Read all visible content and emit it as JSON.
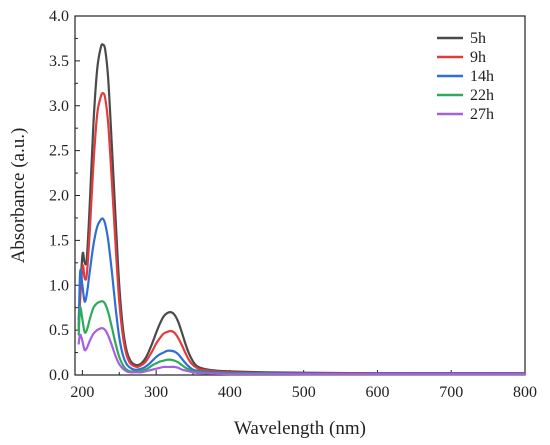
{
  "chart_data": {
    "type": "line",
    "title": "",
    "xlabel": "Wavelength (nm)",
    "ylabel": "Absorbance (a.u.)",
    "xlim": [
      190,
      800
    ],
    "ylim": [
      0,
      4.0
    ],
    "xticks": [
      200,
      300,
      400,
      500,
      600,
      700,
      800
    ],
    "xtick_labels": [
      "200",
      "300",
      "400",
      "500",
      "600",
      "700",
      "800"
    ],
    "yticks": [
      0,
      0.5,
      1.0,
      1.5,
      2.0,
      2.5,
      3.0,
      3.5,
      4.0
    ],
    "ytick_labels": [
      "0.0",
      "0.5",
      "1.0",
      "1.5",
      "2.0",
      "2.5",
      "3.0",
      "3.5",
      "4.0"
    ],
    "grid": false,
    "legend_position": "top-right",
    "series": [
      {
        "name": "5h",
        "color": "#4a4a4a",
        "x": [
          195,
          200,
          203,
          206,
          210,
          215,
          220,
          225,
          228,
          231,
          235,
          240,
          245,
          250,
          255,
          260,
          265,
          270,
          275,
          280,
          285,
          290,
          295,
          300,
          305,
          310,
          315,
          320,
          325,
          330,
          335,
          340,
          345,
          350,
          355,
          360,
          370,
          380,
          400,
          450,
          500,
          600,
          700,
          800
        ],
        "y": [
          0.62,
          1.33,
          1.25,
          1.3,
          1.9,
          2.8,
          3.4,
          3.65,
          3.68,
          3.62,
          3.3,
          2.55,
          1.75,
          1.0,
          0.52,
          0.27,
          0.16,
          0.12,
          0.11,
          0.13,
          0.18,
          0.26,
          0.36,
          0.47,
          0.57,
          0.65,
          0.69,
          0.7,
          0.67,
          0.59,
          0.47,
          0.34,
          0.23,
          0.15,
          0.1,
          0.08,
          0.06,
          0.05,
          0.04,
          0.03,
          0.025,
          0.02,
          0.02,
          0.02
        ]
      },
      {
        "name": "9h",
        "color": "#e03c3c",
        "x": [
          195,
          200,
          203,
          206,
          210,
          215,
          220,
          225,
          228,
          231,
          235,
          240,
          245,
          250,
          255,
          260,
          265,
          270,
          275,
          280,
          285,
          290,
          295,
          300,
          305,
          310,
          315,
          320,
          325,
          330,
          335,
          340,
          345,
          350,
          355,
          360,
          370,
          380,
          400,
          450,
          500,
          600,
          700,
          800
        ],
        "y": [
          0.55,
          1.2,
          1.08,
          1.12,
          1.6,
          2.35,
          2.9,
          3.1,
          3.14,
          3.08,
          2.8,
          2.15,
          1.45,
          0.82,
          0.43,
          0.22,
          0.13,
          0.1,
          0.09,
          0.11,
          0.14,
          0.2,
          0.27,
          0.35,
          0.41,
          0.46,
          0.48,
          0.49,
          0.47,
          0.41,
          0.33,
          0.24,
          0.16,
          0.11,
          0.08,
          0.06,
          0.05,
          0.04,
          0.03,
          0.02,
          0.02,
          0.02,
          0.02,
          0.02
        ]
      },
      {
        "name": "14h",
        "color": "#2e6fd4",
        "x": [
          195,
          197,
          200,
          203,
          206,
          210,
          215,
          220,
          225,
          228,
          231,
          235,
          240,
          245,
          250,
          255,
          260,
          265,
          270,
          275,
          280,
          285,
          290,
          295,
          300,
          305,
          310,
          315,
          320,
          325,
          330,
          335,
          340,
          345,
          350,
          360,
          380,
          400,
          450,
          500,
          600,
          700,
          800
        ],
        "y": [
          0.5,
          1.15,
          1.0,
          0.82,
          0.9,
          1.15,
          1.45,
          1.65,
          1.73,
          1.74,
          1.68,
          1.5,
          1.15,
          0.75,
          0.42,
          0.22,
          0.12,
          0.08,
          0.06,
          0.06,
          0.07,
          0.09,
          0.12,
          0.16,
          0.2,
          0.23,
          0.25,
          0.27,
          0.27,
          0.26,
          0.23,
          0.18,
          0.13,
          0.09,
          0.06,
          0.04,
          0.03,
          0.02,
          0.02,
          0.015,
          0.015,
          0.015,
          0.015
        ]
      },
      {
        "name": "22h",
        "color": "#2eaa5a",
        "x": [
          195,
          197,
          200,
          203,
          206,
          210,
          215,
          220,
          225,
          228,
          231,
          235,
          240,
          245,
          250,
          255,
          260,
          265,
          270,
          275,
          280,
          285,
          290,
          295,
          300,
          305,
          310,
          315,
          320,
          325,
          330,
          335,
          340,
          345,
          350,
          360,
          380,
          400,
          450,
          500,
          600,
          700,
          800
        ],
        "y": [
          0.45,
          0.75,
          0.62,
          0.48,
          0.5,
          0.62,
          0.75,
          0.8,
          0.82,
          0.82,
          0.79,
          0.7,
          0.53,
          0.35,
          0.2,
          0.11,
          0.06,
          0.04,
          0.04,
          0.04,
          0.05,
          0.06,
          0.08,
          0.11,
          0.13,
          0.15,
          0.16,
          0.17,
          0.17,
          0.16,
          0.14,
          0.11,
          0.08,
          0.06,
          0.04,
          0.03,
          0.02,
          0.015,
          0.015,
          0.01,
          0.01,
          0.01,
          0.01
        ]
      },
      {
        "name": "27h",
        "color": "#a65fe0",
        "x": [
          195,
          197,
          200,
          203,
          206,
          210,
          215,
          220,
          225,
          228,
          231,
          235,
          240,
          245,
          250,
          255,
          260,
          265,
          270,
          275,
          280,
          285,
          290,
          295,
          300,
          305,
          310,
          315,
          320,
          325,
          330,
          335,
          340,
          345,
          350,
          360,
          380,
          400,
          450,
          500,
          600,
          700,
          800
        ],
        "y": [
          0.35,
          0.45,
          0.38,
          0.28,
          0.3,
          0.38,
          0.46,
          0.5,
          0.52,
          0.52,
          0.5,
          0.44,
          0.33,
          0.21,
          0.12,
          0.07,
          0.04,
          0.03,
          0.03,
          0.03,
          0.03,
          0.04,
          0.05,
          0.06,
          0.07,
          0.08,
          0.09,
          0.09,
          0.09,
          0.09,
          0.08,
          0.06,
          0.05,
          0.04,
          0.03,
          0.02,
          0.015,
          0.01,
          0.01,
          0.01,
          0.01,
          0.01,
          0.01
        ]
      }
    ]
  }
}
